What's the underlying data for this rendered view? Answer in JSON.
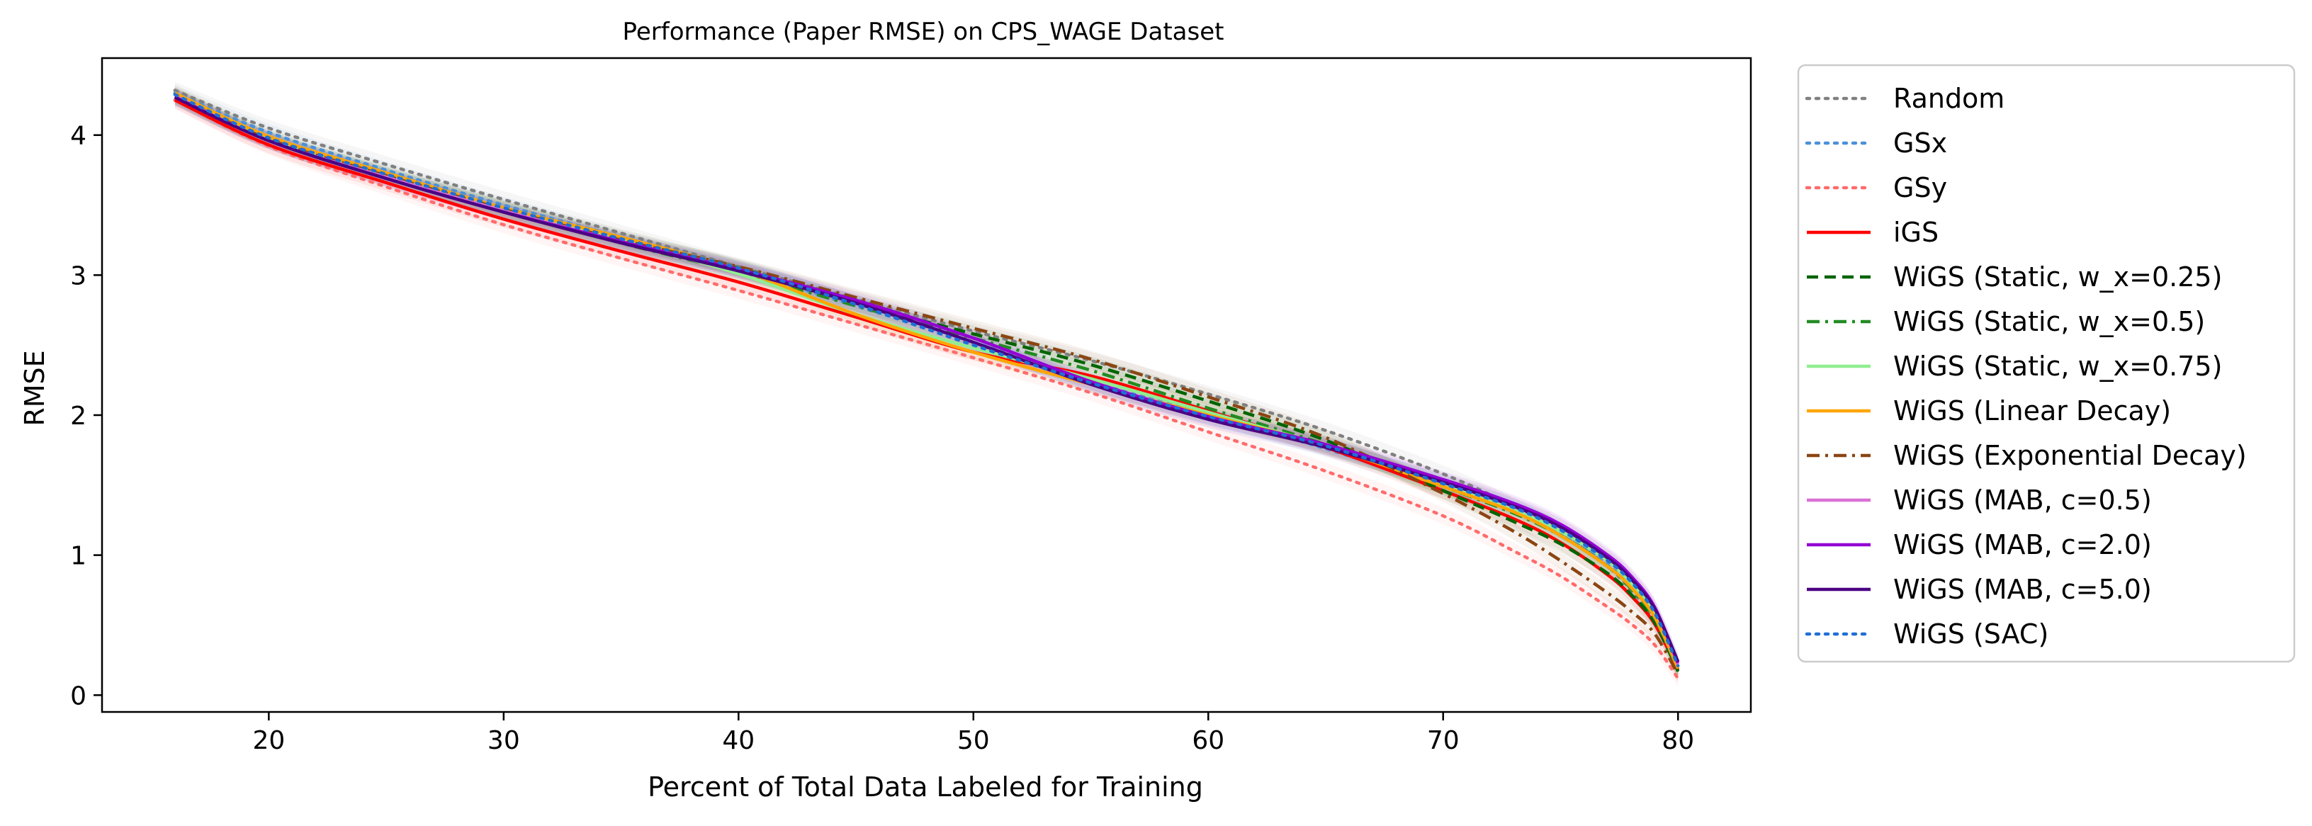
{
  "chart_data": {
    "type": "line",
    "title": "Performance (Paper RMSE) on CPS_WAGE Dataset",
    "xlabel": "Percent of Total Data Labeled for Training",
    "ylabel": "RMSE",
    "xlim": [
      12.9,
      83.1
    ],
    "ylim": [
      -0.12,
      4.55
    ],
    "xticks": [
      20,
      30,
      40,
      50,
      60,
      70,
      80
    ],
    "yticks": [
      0,
      1,
      2,
      3,
      4
    ],
    "xtick_labels": [
      "20",
      "30",
      "40",
      "50",
      "60",
      "70",
      "80"
    ],
    "ytick_labels": [
      "0",
      "1",
      "2",
      "3",
      "4"
    ],
    "grid": false,
    "legend_position": "outside right",
    "series": [
      {
        "name": "Random",
        "color": "#808080",
        "dash": "dotted",
        "x": [
          16,
          20,
          25,
          30,
          35,
          40,
          45,
          50,
          55,
          60,
          65,
          70,
          73,
          75,
          77,
          78,
          79,
          80
        ],
        "y": [
          4.32,
          4.05,
          3.79,
          3.54,
          3.3,
          3.06,
          2.83,
          2.6,
          2.39,
          2.15,
          1.89,
          1.58,
          1.35,
          1.17,
          0.92,
          0.75,
          0.53,
          0.17
        ]
      },
      {
        "name": "GSx",
        "color": "#4a90d9",
        "dash": "dotted",
        "x": [
          16,
          20,
          25,
          30,
          35,
          40,
          45,
          50,
          55,
          60,
          65,
          70,
          73,
          75,
          77,
          78,
          79,
          80
        ],
        "y": [
          4.3,
          4.02,
          3.75,
          3.5,
          3.27,
          3.04,
          2.78,
          2.52,
          2.24,
          2.0,
          1.76,
          1.49,
          1.32,
          1.16,
          0.93,
          0.77,
          0.56,
          0.2
        ]
      },
      {
        "name": "GSy",
        "color": "#ff6b6b",
        "dash": "dotted",
        "x": [
          16,
          20,
          25,
          30,
          35,
          40,
          45,
          50,
          55,
          60,
          65,
          70,
          73,
          75,
          77,
          78,
          79,
          80
        ],
        "y": [
          4.25,
          3.92,
          3.63,
          3.36,
          3.12,
          2.89,
          2.65,
          2.41,
          2.16,
          1.88,
          1.6,
          1.28,
          1.03,
          0.85,
          0.63,
          0.51,
          0.36,
          0.12
        ]
      },
      {
        "name": "iGS",
        "color": "#ff0000",
        "dash": "solid",
        "x": [
          16,
          20,
          25,
          30,
          35,
          40,
          45,
          50,
          55,
          60,
          65,
          70,
          73,
          75,
          77,
          78,
          79,
          80
        ],
        "y": [
          4.25,
          3.93,
          3.66,
          3.4,
          3.17,
          2.95,
          2.7,
          2.45,
          2.28,
          2.03,
          1.77,
          1.46,
          1.26,
          1.09,
          0.86,
          0.71,
          0.51,
          0.18
        ]
      },
      {
        "name": "WiGS (Static, w_x=0.25)",
        "color": "#006400",
        "dash": "dashed",
        "x": [
          16,
          20,
          25,
          30,
          35,
          40,
          45,
          50,
          55,
          60,
          65,
          70,
          73,
          75,
          77,
          78,
          79,
          80
        ],
        "y": [
          4.28,
          3.97,
          3.71,
          3.47,
          3.24,
          3.05,
          2.8,
          2.58,
          2.36,
          2.1,
          1.82,
          1.46,
          1.24,
          1.08,
          0.87,
          0.72,
          0.52,
          0.17
        ]
      },
      {
        "name": "WiGS (Static, w_x=0.5)",
        "color": "#228b22",
        "dash": "dashdot",
        "x": [
          16,
          20,
          25,
          30,
          35,
          40,
          45,
          50,
          55,
          60,
          65,
          70,
          73,
          75,
          77,
          78,
          79,
          80
        ],
        "y": [
          4.27,
          3.96,
          3.7,
          3.46,
          3.23,
          3.02,
          2.78,
          2.55,
          2.32,
          2.05,
          1.79,
          1.49,
          1.3,
          1.14,
          0.92,
          0.76,
          0.55,
          0.18
        ]
      },
      {
        "name": "WiGS (Static, w_x=0.75)",
        "color": "#90ee90",
        "dash": "solid",
        "x": [
          16,
          20,
          25,
          30,
          35,
          40,
          45,
          50,
          55,
          60,
          65,
          70,
          73,
          75,
          77,
          78,
          79,
          80
        ],
        "y": [
          4.28,
          3.97,
          3.71,
          3.47,
          3.25,
          3.01,
          2.72,
          2.48,
          2.26,
          2.02,
          1.78,
          1.5,
          1.32,
          1.17,
          0.96,
          0.8,
          0.59,
          0.2
        ]
      },
      {
        "name": "WiGS (Linear Decay)",
        "color": "#ffa500",
        "dash": "solid",
        "x": [
          16,
          20,
          25,
          30,
          35,
          40,
          45,
          50,
          55,
          60,
          65,
          70,
          73,
          75,
          77,
          78,
          79,
          80
        ],
        "y": [
          4.3,
          3.99,
          3.73,
          3.48,
          3.27,
          3.04,
          2.72,
          2.45,
          2.22,
          2.0,
          1.78,
          1.49,
          1.31,
          1.14,
          0.92,
          0.77,
          0.56,
          0.19
        ]
      },
      {
        "name": "WiGS (Exponential Decay)",
        "color": "#8b4513",
        "dash": "dashdot",
        "x": [
          16,
          20,
          25,
          30,
          35,
          40,
          45,
          50,
          55,
          60,
          65,
          70,
          73,
          75,
          77,
          78,
          79,
          80
        ],
        "y": [
          4.28,
          3.97,
          3.71,
          3.47,
          3.25,
          3.06,
          2.84,
          2.62,
          2.4,
          2.13,
          1.84,
          1.44,
          1.17,
          0.96,
          0.73,
          0.6,
          0.44,
          0.15
        ]
      },
      {
        "name": "WiGS (MAB, c=0.5)",
        "color": "#da70d6",
        "dash": "solid",
        "x": [
          16,
          20,
          25,
          30,
          35,
          40,
          45,
          50,
          55,
          60,
          65,
          70,
          73,
          75,
          77,
          78,
          79,
          80
        ],
        "y": [
          4.28,
          3.96,
          3.7,
          3.46,
          3.24,
          3.04,
          2.8,
          2.52,
          2.22,
          1.98,
          1.78,
          1.53,
          1.36,
          1.21,
          0.99,
          0.84,
          0.62,
          0.22
        ]
      },
      {
        "name": "WiGS (MAB, c=2.0)",
        "color": "#9400d3",
        "dash": "solid",
        "x": [
          16,
          20,
          25,
          30,
          35,
          40,
          45,
          50,
          55,
          60,
          65,
          70,
          73,
          75,
          77,
          78,
          79,
          80
        ],
        "y": [
          4.27,
          3.96,
          3.69,
          3.45,
          3.24,
          3.04,
          2.82,
          2.55,
          2.24,
          1.99,
          1.79,
          1.54,
          1.37,
          1.22,
          1.0,
          0.85,
          0.63,
          0.23
        ]
      },
      {
        "name": "WiGS (MAB, c=5.0)",
        "color": "#4b0082",
        "dash": "solid",
        "x": [
          16,
          20,
          25,
          30,
          35,
          40,
          45,
          50,
          55,
          60,
          65,
          70,
          73,
          75,
          77,
          78,
          79,
          80
        ],
        "y": [
          4.27,
          3.96,
          3.69,
          3.45,
          3.23,
          3.03,
          2.8,
          2.52,
          2.22,
          1.97,
          1.77,
          1.52,
          1.35,
          1.2,
          0.98,
          0.83,
          0.62,
          0.24
        ]
      },
      {
        "name": "WiGS (SAC)",
        "color": "#1f6fd6",
        "dash": "dotted",
        "x": [
          16,
          20,
          25,
          30,
          35,
          40,
          45,
          50,
          55,
          60,
          65,
          70,
          73,
          75,
          77,
          78,
          79,
          80
        ],
        "y": [
          4.29,
          3.98,
          3.72,
          3.48,
          3.26,
          3.05,
          2.79,
          2.5,
          2.23,
          1.99,
          1.78,
          1.51,
          1.34,
          1.18,
          0.96,
          0.81,
          0.59,
          0.21
        ]
      }
    ]
  }
}
